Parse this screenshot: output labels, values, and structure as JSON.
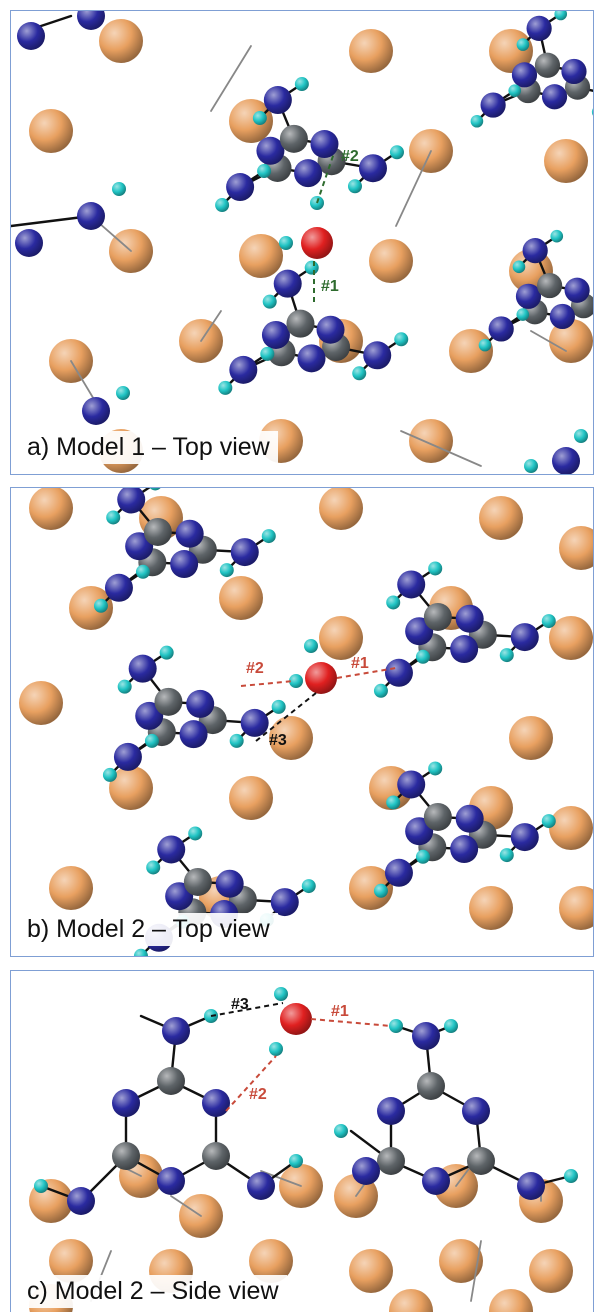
{
  "colors": {
    "cu": "#e8a060",
    "nitrogen": "#2a2aa0",
    "carbon": "#5e6468",
    "hydrogen": "#20c4c4",
    "oxygen": "#e02020",
    "label_green": "#2e6b2e",
    "label_red": "#c84a3a",
    "label_black": "#111111",
    "border": "#7f9fd4"
  },
  "panels": [
    {
      "caption": "a) Model 1 – Top view",
      "labels": [
        {
          "text": "#2",
          "color": "label_green"
        },
        {
          "text": "#1",
          "color": "label_green"
        }
      ]
    },
    {
      "caption": "b) Model 2 – Top view",
      "labels": [
        {
          "text": "#2",
          "color": "label_red"
        },
        {
          "text": "#1",
          "color": "label_red"
        },
        {
          "text": "#3",
          "color": "label_black"
        }
      ]
    },
    {
      "caption": "c) Model 2 – Side view",
      "labels": [
        {
          "text": "#3",
          "color": "label_black"
        },
        {
          "text": "#1",
          "color": "label_red"
        },
        {
          "text": "#2",
          "color": "label_red"
        }
      ]
    }
  ]
}
